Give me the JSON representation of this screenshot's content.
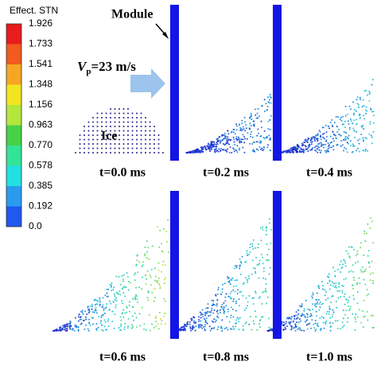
{
  "legend": {
    "title": "Effect. STN",
    "labels": [
      "1.926",
      "1.733",
      "1.541",
      "1.348",
      "1.156",
      "0.963",
      "0.770",
      "0.578",
      "0.385",
      "0.192",
      "0.0"
    ],
    "colors": [
      "#e81c1c",
      "#f25a1e",
      "#f5a623",
      "#f2e41e",
      "#b4e63c",
      "#46d246",
      "#32e496",
      "#22e0e0",
      "#2a9cf0",
      "#2058f0"
    ]
  },
  "annotations": {
    "module": "Module",
    "velocity_symbol": "V",
    "velocity_subscript": "p",
    "velocity_value": "=23 m/s",
    "ice": "Ice"
  },
  "panels": [
    {
      "time": "t=0.0 ms"
    },
    {
      "time": "t=0.2 ms"
    },
    {
      "time": "t=0.4 ms"
    },
    {
      "time": "t=0.6 ms"
    },
    {
      "time": "t=0.8 ms"
    },
    {
      "time": "t=1.0 ms"
    }
  ]
}
